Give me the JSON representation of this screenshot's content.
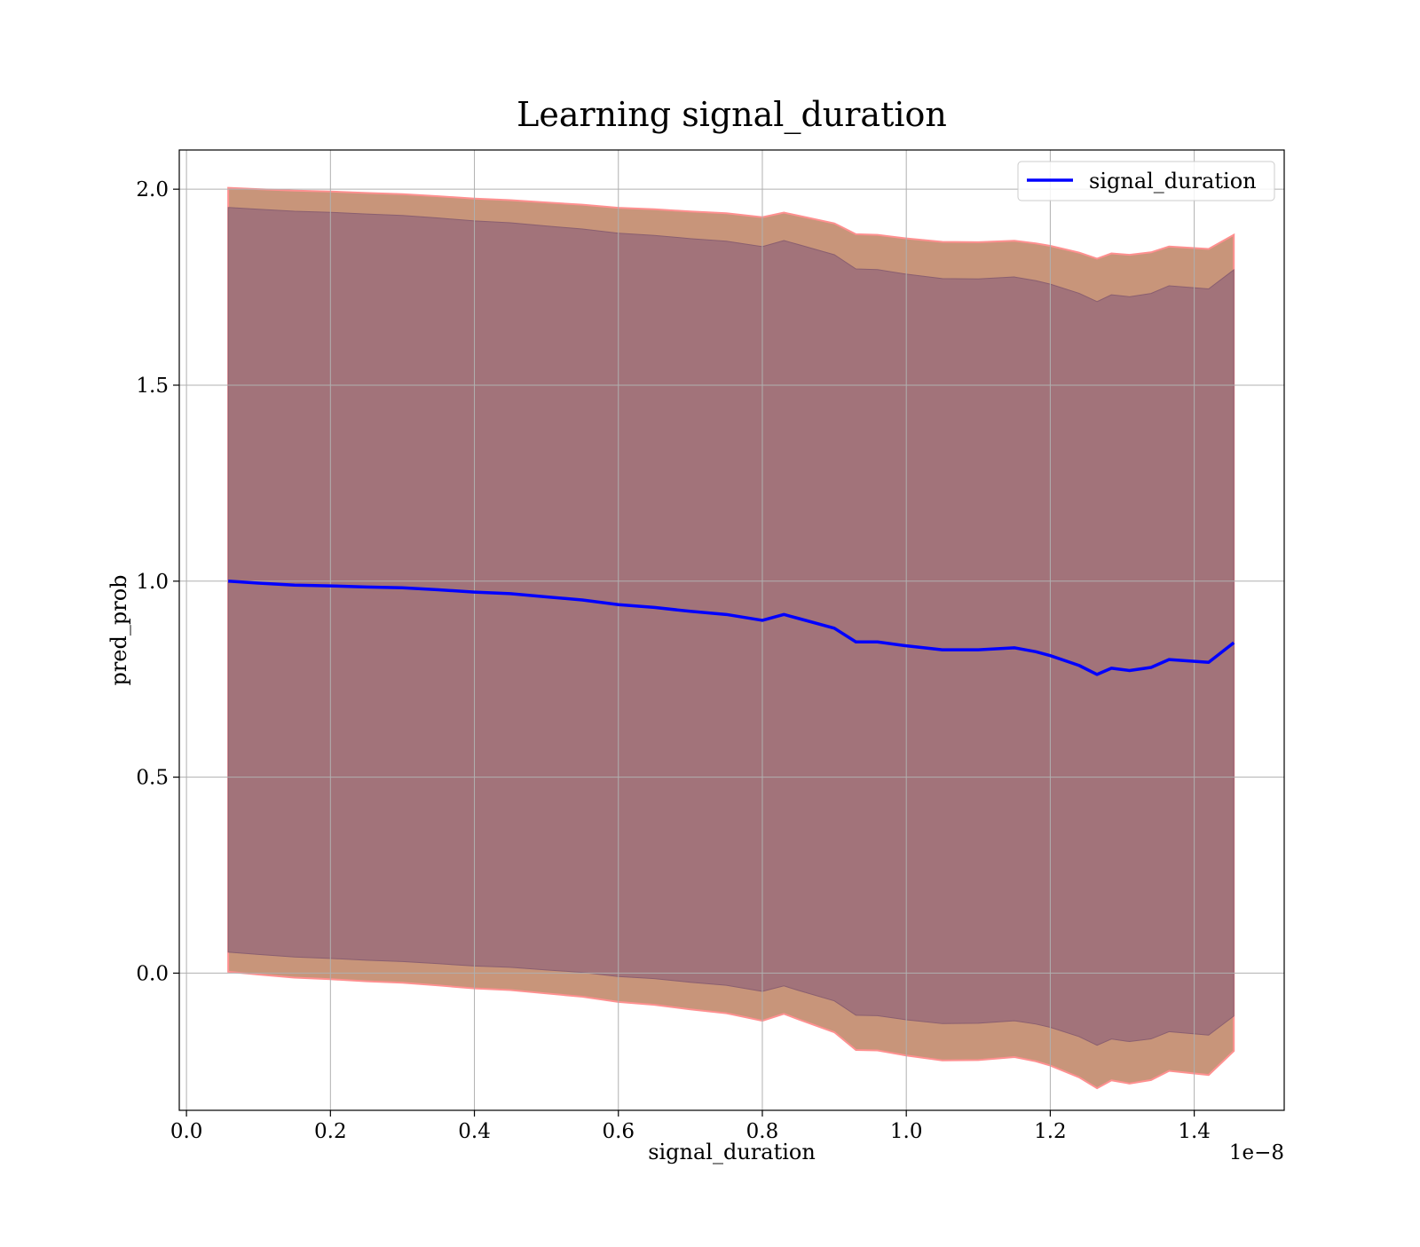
{
  "chart_data": {
    "type": "line",
    "title": "Learning signal_duration",
    "xlabel": "signal_duration",
    "ylabel": "pred_prob",
    "x_offset_label": "1e−8",
    "xlim": [
      -0.01,
      1.525
    ],
    "ylim": [
      -0.35,
      2.1
    ],
    "xticks": [
      0.0,
      0.2,
      0.4,
      0.6,
      0.8,
      1.0,
      1.2,
      1.4
    ],
    "xtick_labels": [
      "0.0",
      "0.2",
      "0.4",
      "0.6",
      "0.8",
      "1.0",
      "1.2",
      "1.4"
    ],
    "yticks": [
      0.0,
      0.5,
      1.0,
      1.5,
      2.0
    ],
    "ytick_labels": [
      "0.0",
      "0.5",
      "1.0",
      "1.5",
      "2.0"
    ],
    "grid": true,
    "legend_position": "top-right",
    "colors": {
      "line": "#0000ff",
      "outer_band": "#c8957a",
      "outer_band_edge": "#ff9090",
      "inner_band": "#a0717a",
      "grid": "#b0b0b0"
    },
    "series": [
      {
        "name": "signal_duration",
        "x": [
          0.058,
          0.1,
          0.15,
          0.2,
          0.25,
          0.3,
          0.35,
          0.4,
          0.45,
          0.5,
          0.55,
          0.6,
          0.65,
          0.7,
          0.75,
          0.8,
          0.83,
          0.85,
          0.9,
          0.93,
          0.96,
          1.0,
          1.05,
          1.1,
          1.15,
          1.18,
          1.2,
          1.24,
          1.265,
          1.285,
          1.31,
          1.34,
          1.365,
          1.42,
          1.455
        ],
        "y": [
          1.0,
          0.995,
          0.99,
          0.988,
          0.985,
          0.983,
          0.978,
          0.972,
          0.968,
          0.96,
          0.952,
          0.94,
          0.933,
          0.923,
          0.915,
          0.9,
          0.915,
          0.905,
          0.88,
          0.845,
          0.845,
          0.835,
          0.825,
          0.825,
          0.83,
          0.82,
          0.81,
          0.785,
          0.762,
          0.778,
          0.772,
          0.78,
          0.8,
          0.793,
          0.843
        ]
      }
    ]
  }
}
